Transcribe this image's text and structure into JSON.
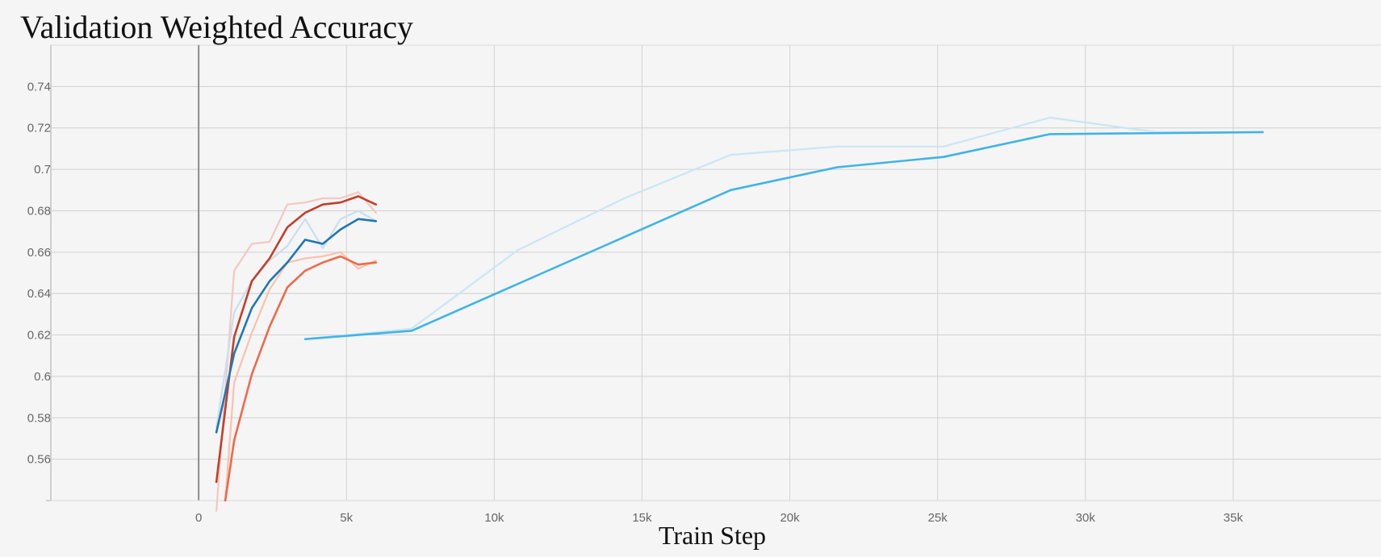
{
  "chart_data": {
    "type": "line",
    "title": "Validation Weighted Accuracy",
    "xlabel": "Train Step",
    "ylabel": "",
    "xlim": [
      -5000,
      40000
    ],
    "ylim": [
      0.54,
      0.76
    ],
    "x_ticks": [
      0,
      5000,
      10000,
      15000,
      20000,
      25000,
      30000,
      35000
    ],
    "x_tick_labels": [
      "0",
      "5k",
      "10k",
      "15k",
      "20k",
      "25k",
      "30k",
      "35k"
    ],
    "y_ticks": [
      0.56,
      0.58,
      0.6,
      0.62,
      0.64,
      0.66,
      0.68,
      0.7,
      0.72,
      0.74
    ],
    "y_tick_labels": [
      "0.56",
      "0.58",
      "0.6",
      "0.62",
      "0.64",
      "0.66",
      "0.68",
      "0.7",
      "0.72",
      "0.74"
    ],
    "grid": true,
    "series": [
      {
        "color": "#f2c8c0",
        "role": "raw",
        "x": [
          600,
          1200,
          1800,
          2400,
          3000,
          3600,
          4200,
          4800,
          5400,
          6000
        ],
        "y": [
          0.535,
          0.651,
          0.664,
          0.665,
          0.683,
          0.684,
          0.686,
          0.686,
          0.689,
          0.679
        ]
      },
      {
        "color": "#c53d2a",
        "role": "smoothed",
        "x": [
          600,
          1200,
          1800,
          2400,
          3000,
          3600,
          4200,
          4800,
          5400,
          6000
        ],
        "y": [
          0.549,
          0.619,
          0.646,
          0.657,
          0.672,
          0.679,
          0.683,
          0.684,
          0.687,
          0.683
        ]
      },
      {
        "color": "#c8dff0",
        "role": "raw",
        "x": [
          600,
          1200,
          1800,
          2400,
          3000,
          3600,
          4200,
          4800,
          5400,
          6000
        ],
        "y": [
          0.575,
          0.631,
          0.646,
          0.656,
          0.663,
          0.676,
          0.662,
          0.676,
          0.68,
          0.675
        ]
      },
      {
        "color": "#1f77b4",
        "role": "smoothed",
        "x": [
          600,
          1200,
          1800,
          2400,
          3000,
          3600,
          4200,
          4800,
          5400,
          6000
        ],
        "y": [
          0.573,
          0.611,
          0.633,
          0.646,
          0.655,
          0.666,
          0.664,
          0.671,
          0.676,
          0.675
        ]
      },
      {
        "color": "#f8c3ab",
        "role": "raw",
        "x": [
          900,
          1200,
          1800,
          2400,
          3000,
          3600,
          4200,
          4800,
          5400,
          6000
        ],
        "y": [
          0.54,
          0.597,
          0.621,
          0.642,
          0.655,
          0.657,
          0.658,
          0.66,
          0.652,
          0.656
        ]
      },
      {
        "color": "#ee6a4a",
        "role": "smoothed",
        "x": [
          900,
          1200,
          1800,
          2400,
          3000,
          3600,
          4200,
          4800,
          5400,
          6000
        ],
        "y": [
          0.54,
          0.569,
          0.601,
          0.624,
          0.643,
          0.651,
          0.655,
          0.658,
          0.654,
          0.655
        ]
      },
      {
        "color": "#c9e6f4",
        "role": "raw",
        "x": [
          3600,
          7200,
          10800,
          14400,
          18000,
          21600,
          25200,
          28800,
          32400,
          36000
        ],
        "y": [
          0.618,
          0.623,
          0.661,
          0.686,
          0.707,
          0.711,
          0.711,
          0.725,
          0.718,
          0.718
        ]
      },
      {
        "color": "#3fb4e6",
        "role": "smoothed",
        "x": [
          3600,
          7200,
          18000,
          21600,
          25200,
          28800,
          36000
        ],
        "y": [
          0.618,
          0.622,
          0.69,
          0.701,
          0.706,
          0.717,
          0.718
        ]
      }
    ]
  }
}
